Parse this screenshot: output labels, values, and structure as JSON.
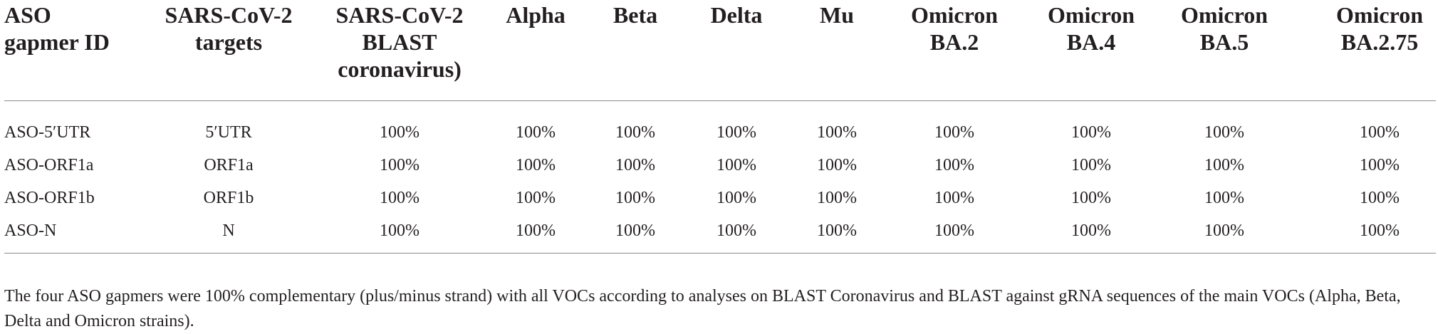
{
  "table": {
    "headers": [
      [
        "ASO",
        "gapmer ID"
      ],
      [
        "SARS-CoV-2",
        "targets"
      ],
      [
        "SARS-CoV-2",
        "BLAST",
        "coronavirus)"
      ],
      [
        "Alpha"
      ],
      [
        "Beta"
      ],
      [
        "Delta"
      ],
      [
        "Mu"
      ],
      [
        "Omicron",
        "BA.2"
      ],
      [
        "Omicron",
        "BA.4"
      ],
      [
        "Omicron",
        "BA.5"
      ],
      [
        "Omicron",
        "BA.2.75"
      ]
    ],
    "rows": [
      [
        "ASO-5′UTR",
        "5′UTR",
        "100%",
        "100%",
        "100%",
        "100%",
        "100%",
        "100%",
        "100%",
        "100%",
        "100%"
      ],
      [
        "ASO-ORF1a",
        "ORF1a",
        "100%",
        "100%",
        "100%",
        "100%",
        "100%",
        "100%",
        "100%",
        "100%",
        "100%"
      ],
      [
        "ASO-ORF1b",
        "ORF1b",
        "100%",
        "100%",
        "100%",
        "100%",
        "100%",
        "100%",
        "100%",
        "100%",
        "100%"
      ],
      [
        "ASO-N",
        "N",
        "100%",
        "100%",
        "100%",
        "100%",
        "100%",
        "100%",
        "100%",
        "100%",
        "100%"
      ]
    ],
    "footnote": "The four ASO gapmers were 100% complementary (plus/minus strand) with all VOCs according to analyses on BLAST Coronavirus and BLAST against gRNA sequences of the main VOCs (Alpha, Beta, Delta and Omicron strains)."
  }
}
